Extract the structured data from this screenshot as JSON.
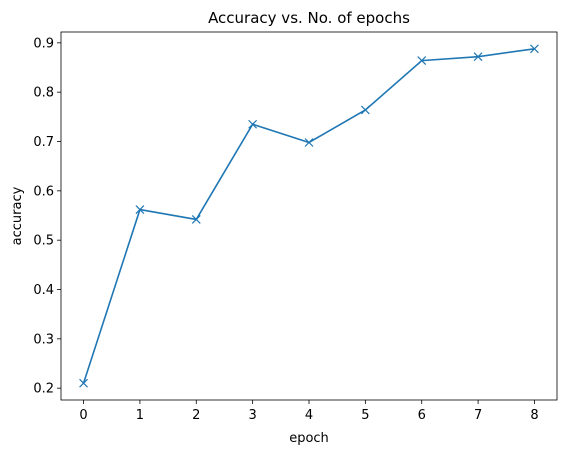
{
  "chart_data": {
    "type": "line",
    "title": "Accuracy vs. No. of epochs",
    "xlabel": "epoch",
    "ylabel": "accuracy",
    "x": [
      0,
      1,
      2,
      3,
      4,
      5,
      6,
      7,
      8
    ],
    "series": [
      {
        "values": [
          0.21,
          0.562,
          0.542,
          0.735,
          0.698,
          0.764,
          0.864,
          0.872,
          0.888
        ],
        "marker": "x",
        "color": "#1f77b4"
      }
    ],
    "xticks": [
      "0",
      "1",
      "2",
      "3",
      "4",
      "5",
      "6",
      "7",
      "8"
    ],
    "yticks": [
      "0.2",
      "0.3",
      "0.4",
      "0.5",
      "0.6",
      "0.7",
      "0.8",
      "0.9"
    ],
    "xlim": [
      -0.4,
      8.4
    ],
    "ylim": [
      0.176,
      0.922
    ],
    "grid": false,
    "legend": "none"
  }
}
